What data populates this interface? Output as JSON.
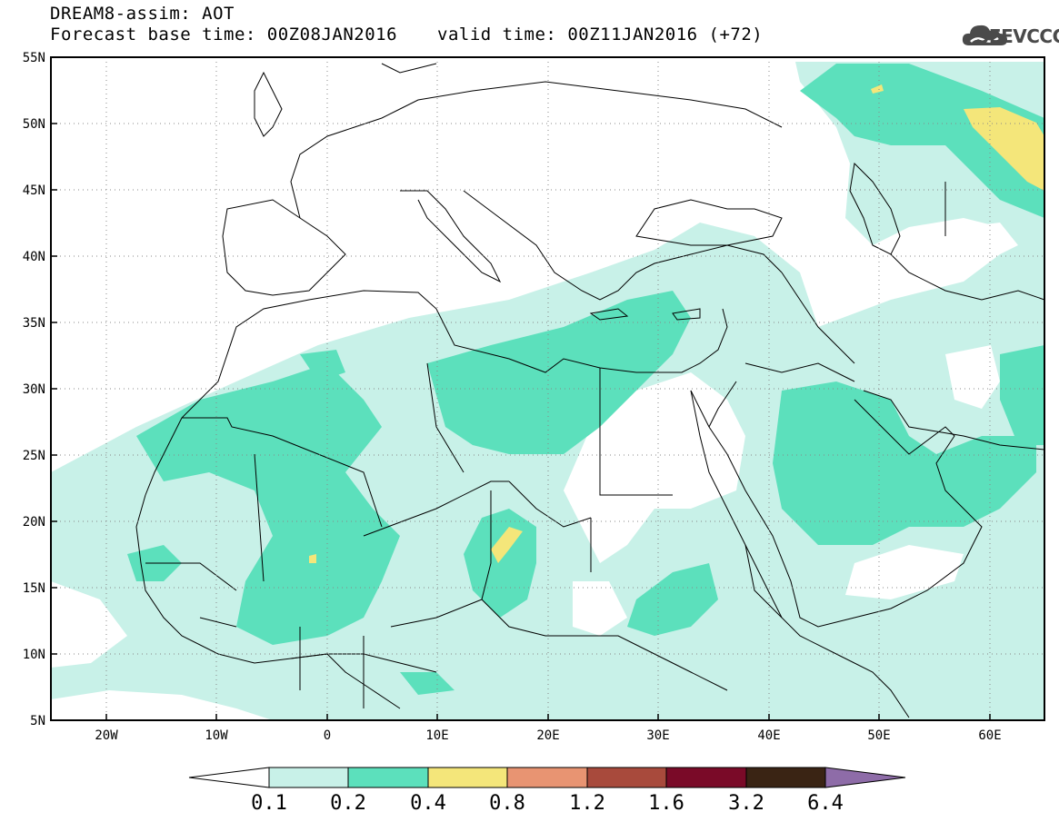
{
  "header": {
    "line1": "DREAM8-assim: AOT",
    "base_time": "Forecast base time: 00Z08JAN2016",
    "valid_time": "valid time: 00Z11JAN2016 (+72)"
  },
  "logo": {
    "text": "SEEVCCC",
    "icon": "cloud-icon"
  },
  "map": {
    "lat_labels": [
      "55N",
      "50N",
      "45N",
      "40N",
      "35N",
      "30N",
      "25N",
      "20N",
      "15N",
      "10N",
      "5N"
    ],
    "lon_labels": [
      "20W",
      "10W",
      "0",
      "10E",
      "20E",
      "30E",
      "40E",
      "50E",
      "60E"
    ],
    "extent": {
      "lon": [
        -25,
        65
      ],
      "lat": [
        5,
        55
      ]
    }
  },
  "colorbar": {
    "levels": [
      "0.1",
      "0.2",
      "0.4",
      "0.8",
      "1.2",
      "1.6",
      "3.2",
      "6.4"
    ],
    "colors": [
      "#ffffff",
      "#c8f1e8",
      "#5ce0bc",
      "#f4e67a",
      "#e89472",
      "#a84a3c",
      "#7a0a28",
      "#3a2414",
      "#8e6ca8"
    ]
  }
}
